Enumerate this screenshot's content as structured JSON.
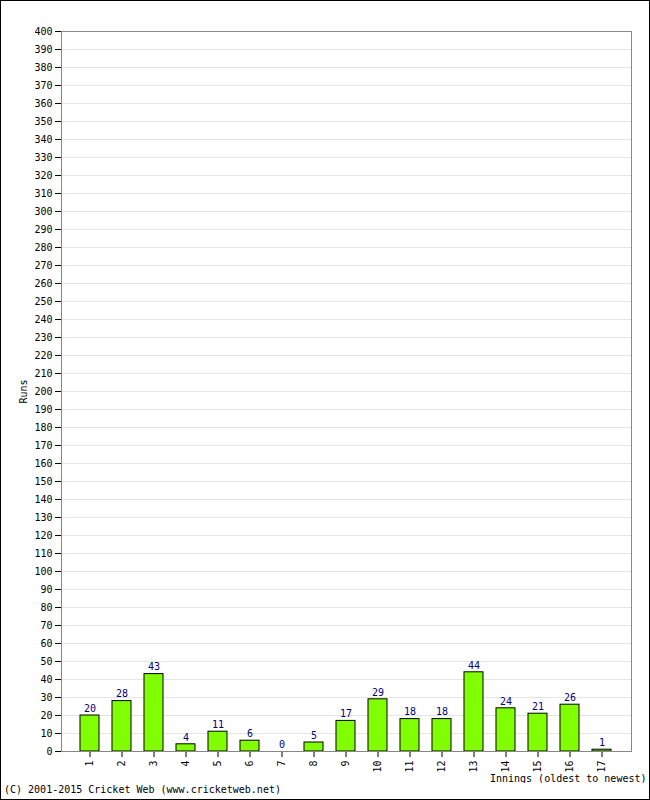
{
  "chart_data": {
    "type": "bar",
    "categories": [
      "1",
      "2",
      "3",
      "4",
      "5",
      "6",
      "7",
      "8",
      "9",
      "10",
      "11",
      "12",
      "13",
      "14",
      "15",
      "16",
      "17"
    ],
    "values": [
      20,
      28,
      43,
      4,
      11,
      6,
      0,
      5,
      17,
      29,
      18,
      18,
      44,
      24,
      21,
      26,
      1
    ],
    "color": "#80ff00",
    "x_label": "Innings (oldest to newest)",
    "y_label": "Runs",
    "caption": "(C) 2001-2015 Cricket Web (www.cricketweb.net)",
    "ylim": [
      0,
      400
    ],
    "yticks": [
      0,
      10,
      20,
      30,
      40,
      50,
      60,
      70,
      80,
      90,
      100,
      110,
      120,
      130,
      140,
      150,
      160,
      170,
      180,
      190,
      200,
      210,
      220,
      230,
      240,
      250,
      260,
      270,
      280,
      290,
      300,
      310,
      320,
      330,
      340,
      350,
      360,
      370,
      380,
      390,
      400
    ],
    "grid": true,
    "data_labels": true
  }
}
